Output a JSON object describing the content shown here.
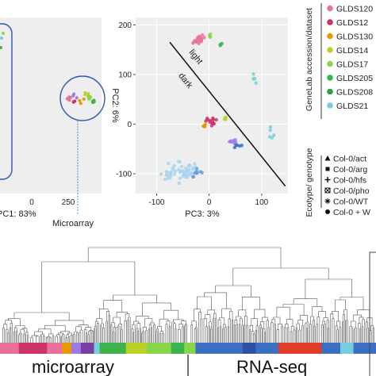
{
  "chart_data": [
    {
      "type": "scatter",
      "xlabel": "PC1: 83%",
      "xticks": [
        0,
        250
      ],
      "annotation": "Microarray"
    },
    {
      "type": "scatter",
      "xlabel": "PC3: 3%",
      "ylabel": "PC2: 6%",
      "xlim": [
        -140,
        150
      ],
      "ylim": [
        -140,
        215
      ],
      "xticks": [
        -100,
        0,
        100
      ],
      "yticks": [
        200,
        100,
        0,
        -100
      ],
      "divider_labels": [
        "light",
        "dark"
      ],
      "divider_line": [
        [
          -75,
          165
        ],
        [
          145,
          -125
        ]
      ],
      "clusters": [
        {
          "color": "#e8709a",
          "cx": -20,
          "cy": 170,
          "n": 20,
          "sx": 8,
          "sy": 9
        },
        {
          "color": "#88d64a",
          "cx": 2,
          "cy": 178,
          "n": 4,
          "sx": 3,
          "sy": 5
        },
        {
          "color": "#3db44b",
          "cx": 20,
          "cy": 160,
          "n": 3,
          "sx": 3,
          "sy": 3
        },
        {
          "color": "#77ccdd",
          "cx": 85,
          "cy": 90,
          "n": 4,
          "sx": 4,
          "sy": 12
        },
        {
          "color": "#cc3366",
          "cx": 5,
          "cy": 5,
          "n": 14,
          "sx": 10,
          "sy": 6
        },
        {
          "color": "#e69a00",
          "cx": -10,
          "cy": -5,
          "n": 4,
          "sx": 4,
          "sy": 3
        },
        {
          "color": "#bbd12a",
          "cx": 30,
          "cy": 12,
          "n": 4,
          "sx": 4,
          "sy": 4
        },
        {
          "color": "#9e7ae8",
          "cx": 45,
          "cy": -35,
          "n": 7,
          "sx": 7,
          "sy": 4
        },
        {
          "color": "#3a6fc4",
          "cx": 55,
          "cy": -45,
          "n": 5,
          "sx": 7,
          "sy": 4
        },
        {
          "color": "#aad3ee",
          "cx": -55,
          "cy": -95,
          "n": 55,
          "sx": 28,
          "sy": 17
        },
        {
          "color": "#6a9fd8",
          "cx": -25,
          "cy": -100,
          "n": 10,
          "sx": 12,
          "sy": 8
        },
        {
          "color": "#77ccdd",
          "cx": 120,
          "cy": -15,
          "n": 5,
          "sx": 5,
          "sy": 18
        }
      ]
    },
    {
      "type": "dendrogram",
      "labels": [
        "microarray",
        "RNA-seq"
      ],
      "color_bar": [
        [
          "#e8709a",
          20
        ],
        [
          "#cc3366",
          30
        ],
        [
          "#e8709a",
          16
        ],
        [
          "#e69a00",
          10
        ],
        [
          "#9e7ae8",
          10
        ],
        [
          "#7a3fa0",
          14
        ],
        [
          "#77ccdd",
          6
        ],
        [
          "#3db44b",
          28
        ],
        [
          "#bbd12a",
          22
        ],
        [
          "#88d64a",
          26
        ],
        [
          "#3db44b",
          14
        ],
        [
          "#88d64a",
          12
        ],
        [
          "#3a6fc4",
          50
        ],
        [
          "#2e4fa6",
          14
        ],
        [
          "#3a6fc4",
          24
        ],
        [
          "#e03c2a",
          46
        ],
        [
          "#3a6fc4",
          20
        ],
        [
          "#77ccdd",
          14
        ],
        [
          "#3a6fc4",
          24
        ]
      ]
    }
  ],
  "legend_dataset": {
    "title": "GeneLab accession/dataset",
    "items": [
      {
        "label": "GLDS120",
        "color": "#e8709a"
      },
      {
        "label": "GLDS12",
        "color": "#cc3366"
      },
      {
        "label": "GLDS130",
        "color": "#e69a00"
      },
      {
        "label": "GLDS14",
        "color": "#bbd12a"
      },
      {
        "label": "GLDS17",
        "color": "#88d64a"
      },
      {
        "label": "GLDS205",
        "color": "#3db44b"
      },
      {
        "label": "GLDS208",
        "color": "#2ea043"
      },
      {
        "label": "GLDS21",
        "color": "#77ccdd"
      }
    ]
  },
  "legend_genotype": {
    "title": "Ecotype/ genotype",
    "items": [
      {
        "label": "Col-0/act",
        "symbol": "triangle"
      },
      {
        "label": "Col-0/arg",
        "symbol": "square"
      },
      {
        "label": "Col-0/hfs",
        "symbol": "plus"
      },
      {
        "label": "Col-0/pho",
        "symbol": "boxx"
      },
      {
        "label": "Col-0/WT",
        "symbol": "star"
      },
      {
        "label": "Col-0 + W",
        "symbol": "circle"
      }
    ]
  }
}
